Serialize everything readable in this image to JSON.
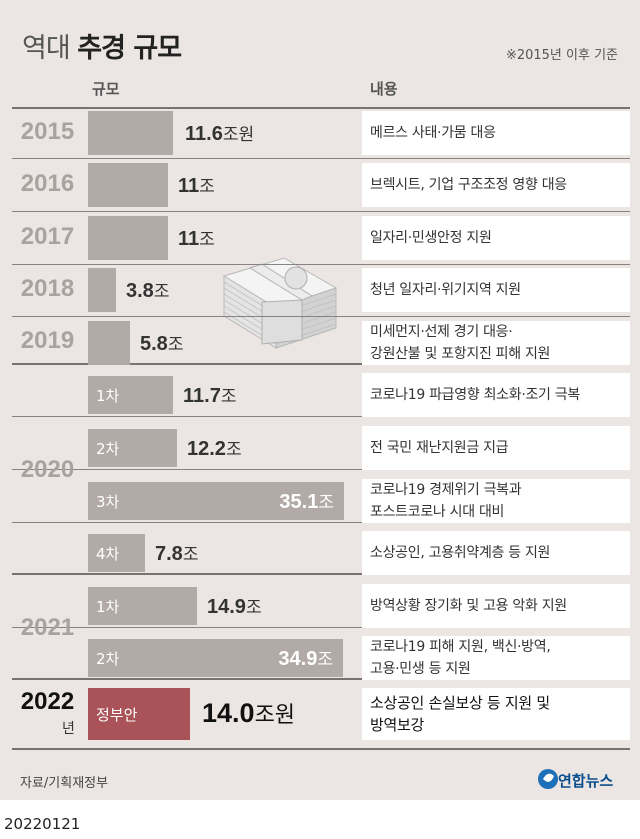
{
  "header": {
    "title_pre": "역대",
    "title_main": "추경 규모",
    "note": "※2015년 이후 기준",
    "col_amount": "규모",
    "col_content": "내용"
  },
  "chart_data": {
    "type": "bar",
    "orientation": "horizontal",
    "unit": "조원",
    "rows": [
      {
        "year": "2015",
        "label": "",
        "value": 11.6,
        "value_text": "11.6",
        "unit_text": "조원",
        "desc": [
          "메르스 사태·가뭄 대응"
        ]
      },
      {
        "year": "2016",
        "label": "",
        "value": 11,
        "value_text": "11",
        "unit_text": "조",
        "desc": [
          "브렉시트, 기업 구조조정 영향 대응"
        ]
      },
      {
        "year": "2017",
        "label": "",
        "value": 11,
        "value_text": "11",
        "unit_text": "조",
        "desc": [
          "일자리·민생안정 지원"
        ]
      },
      {
        "year": "2018",
        "label": "",
        "value": 3.8,
        "value_text": "3.8",
        "unit_text": "조",
        "desc": [
          "청년 일자리·위기지역 지원"
        ]
      },
      {
        "year": "2019",
        "label": "",
        "value": 5.8,
        "value_text": "5.8",
        "unit_text": "조",
        "desc": [
          "미세먼지·선제 경기 대응·",
          "강원산불 및 포항지진 피해 지원"
        ]
      },
      {
        "year": "2020",
        "label": "1차",
        "value": 11.7,
        "value_text": "11.7",
        "unit_text": "조",
        "desc": [
          "코로나19 파급영향 최소화·조기 극복"
        ]
      },
      {
        "year": "2020",
        "label": "2차",
        "value": 12.2,
        "value_text": "12.2",
        "unit_text": "조",
        "desc": [
          "전 국민 재난지원금 지급"
        ]
      },
      {
        "year": "2020",
        "label": "3차",
        "value": 35.1,
        "value_text": "35.1",
        "unit_text": "조",
        "desc": [
          "코로나19 경제위기 극복과",
          "포스트코로나 시대 대비"
        ]
      },
      {
        "year": "2020",
        "label": "4차",
        "value": 7.8,
        "value_text": "7.8",
        "unit_text": "조",
        "desc": [
          "소상공인, 고용취약계층 등 지원"
        ]
      },
      {
        "year": "2021",
        "label": "1차",
        "value": 14.9,
        "value_text": "14.9",
        "unit_text": "조",
        "desc": [
          "방역상황 장기화 및 고용 악화 지원"
        ]
      },
      {
        "year": "2021",
        "label": "2차",
        "value": 34.9,
        "value_text": "34.9",
        "unit_text": "조",
        "desc": [
          "코로나19 피해 지원, 백신·방역,",
          "고용·민생 등 지원"
        ]
      },
      {
        "year": "2022",
        "label": "정부안",
        "value": 14.0,
        "value_text": "14.0",
        "unit_text": "조원",
        "desc": [
          "소상공인 손실보상 등 지원 및",
          "방역보강"
        ]
      }
    ],
    "year_groups": [
      "2015",
      "2016",
      "2017",
      "2018",
      "2019",
      "2020",
      "2021",
      "2022"
    ],
    "year_suffix_2022": "년",
    "colors": {
      "bar": "#b2aaa7",
      "highlight": "#a95257",
      "panel": "#ebe6e4"
    }
  },
  "footer": {
    "source": "자료/기획재정부",
    "logo": "연합뉴스",
    "date": "20220121"
  }
}
